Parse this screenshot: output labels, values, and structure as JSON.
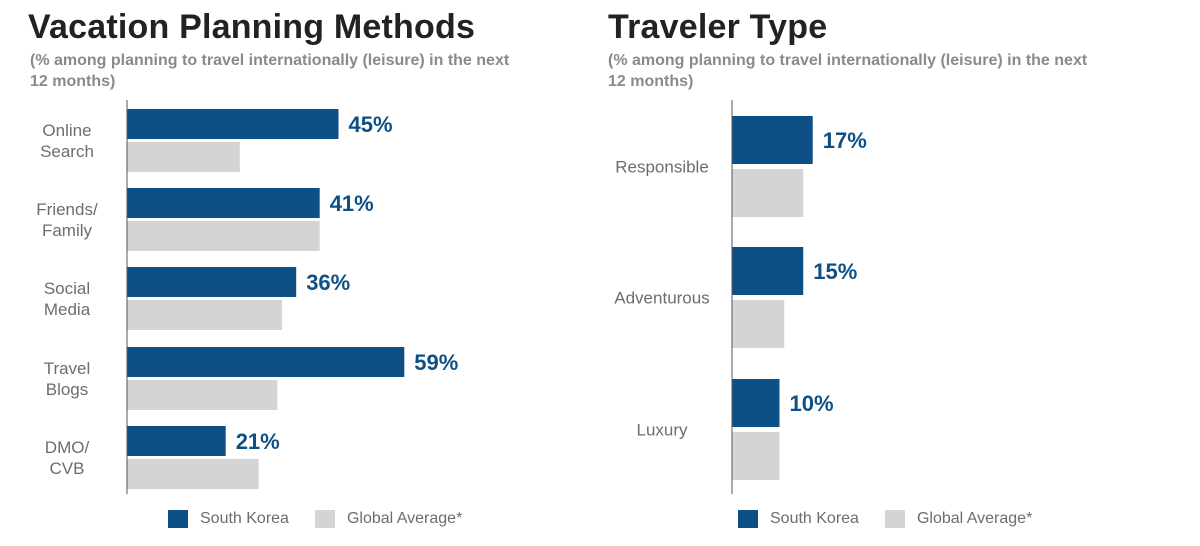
{
  "colors": {
    "south_korea": "#0e4f86",
    "global_average": "#d4d4d6",
    "axis": "#555555"
  },
  "chart_data": [
    {
      "type": "bar",
      "orientation": "horizontal",
      "title": "Vacation Planning Methods",
      "subtitle": "(% among planning to travel internationally (leisure) in the next 12 months)",
      "categories": [
        [
          "Online",
          "Search"
        ],
        [
          "Friends/",
          "Family"
        ],
        [
          "Social",
          "Media"
        ],
        [
          "Travel",
          "Blogs"
        ],
        [
          "DMO/",
          "CVB"
        ]
      ],
      "series": [
        {
          "name": "South Korea",
          "values": [
            45,
            41,
            36,
            59,
            21
          ],
          "data_labels": [
            "45%",
            "41%",
            "36%",
            "59%",
            "21%"
          ]
        },
        {
          "name": "Global Average*",
          "values": [
            24,
            41,
            33,
            32,
            28
          ]
        }
      ],
      "xlim": [
        0,
        100
      ],
      "legend_position": "bottom"
    },
    {
      "type": "bar",
      "orientation": "horizontal",
      "title": "Traveler Type",
      "subtitle": "(% among planning to travel internationally (leisure) in the next 12 months)",
      "categories": [
        [
          "Responsible"
        ],
        [
          "Adventurous"
        ],
        [
          "Luxury"
        ]
      ],
      "series": [
        {
          "name": "South Korea",
          "values": [
            17,
            15,
            10
          ],
          "data_labels": [
            "17%",
            "15%",
            "10%"
          ]
        },
        {
          "name": "Global Average*",
          "values": [
            15,
            11,
            10
          ]
        }
      ],
      "xlim": [
        0,
        100
      ],
      "legend_position": "bottom"
    }
  ],
  "legend": {
    "south_korea_label": "South Korea",
    "global_label": "Global Average*"
  }
}
